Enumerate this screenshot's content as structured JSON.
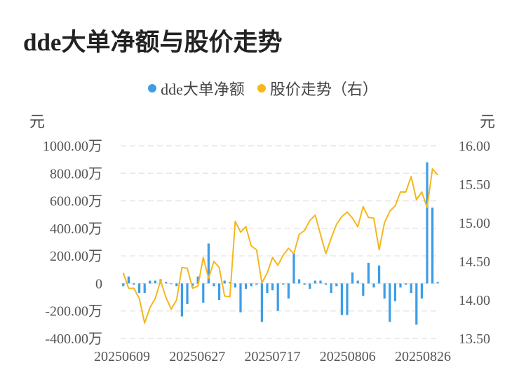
{
  "title": "dde大单净额与股价走势",
  "colors": {
    "bar": "#3d9de6",
    "line": "#f4b71e",
    "grid": "#e6e6e6"
  },
  "chart_data": {
    "type": "bar+line",
    "title": "dde大单净额与股价走势",
    "legend": {
      "placement": "top",
      "entries": [
        "dde大单净额",
        "股价走势（右）"
      ]
    },
    "left_axis": {
      "unit": "元",
      "ylim": [
        -4000000,
        10000000
      ],
      "tick_labels": [
        "1000.00万",
        "800.00万",
        "600.00万",
        "400.00万",
        "200.00万",
        "0",
        "-200.00万",
        "-400.00万"
      ]
    },
    "right_axis": {
      "unit": "元",
      "ylim": [
        13.5,
        16.0
      ],
      "tick_labels": [
        "16.00",
        "15.50",
        "15.00",
        "14.50",
        "14.00",
        "13.50"
      ]
    },
    "x_tick_labels": [
      "20250609",
      "20250627",
      "20250717",
      "20250806",
      "20250826"
    ],
    "grid": true,
    "series": [
      {
        "name": "dde大单净额",
        "type": "bar",
        "axis": "left",
        "values": [
          -200000,
          500000,
          -100000,
          -700000,
          -700000,
          200000,
          200000,
          300000,
          100000,
          -50000,
          -200000,
          -2400000,
          -1500000,
          -200000,
          500000,
          -1400000,
          2900000,
          -200000,
          -1200000,
          200000,
          100000,
          -300000,
          -2100000,
          -400000,
          -200000,
          -100000,
          -2800000,
          -700000,
          -500000,
          -2000000,
          -100000,
          -1100000,
          2200000,
          300000,
          -100000,
          -400000,
          200000,
          200000,
          -100000,
          -700000,
          -200000,
          -2300000,
          -2300000,
          800000,
          200000,
          -900000,
          1500000,
          -300000,
          1300000,
          -1100000,
          -2800000,
          -1300000,
          -300000,
          -100000,
          -700000,
          -3000000,
          -1100000,
          8800000,
          5500000,
          100000
        ]
      },
      {
        "name": "股价走势（右）",
        "type": "line",
        "axis": "right",
        "values": [
          14.35,
          14.15,
          14.15,
          14.02,
          13.7,
          13.9,
          14.02,
          14.25,
          14.03,
          13.88,
          14.0,
          14.42,
          14.41,
          14.15,
          14.18,
          14.55,
          14.28,
          14.5,
          14.42,
          14.05,
          14.04,
          15.02,
          14.88,
          14.95,
          14.7,
          14.65,
          14.22,
          14.35,
          14.55,
          14.45,
          14.58,
          14.67,
          14.6,
          14.85,
          14.9,
          15.03,
          15.1,
          14.85,
          14.6,
          14.8,
          14.98,
          15.08,
          15.14,
          15.06,
          14.95,
          15.21,
          15.07,
          15.06,
          14.65,
          15.0,
          15.15,
          15.22,
          15.4,
          15.4,
          15.6,
          15.3,
          15.4,
          15.2,
          15.7,
          15.62
        ]
      }
    ]
  }
}
